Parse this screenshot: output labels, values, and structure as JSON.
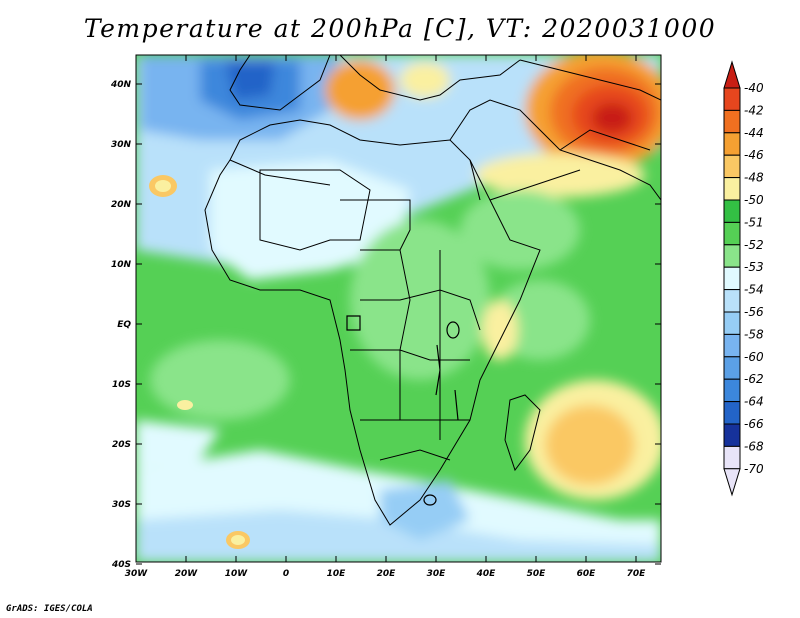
{
  "title": "Temperature at 200hPa [C], VT: 2020031000",
  "credit": "GrADS: IGES/COLA",
  "map": {
    "lon_range": [
      -30,
      75
    ],
    "lat_range": [
      -40,
      45
    ],
    "lat_ticks": [
      "40N",
      "30N",
      "20N",
      "10N",
      "EQ",
      "10S",
      "20S",
      "30S",
      "40S"
    ],
    "lon_ticks": [
      "30W",
      "20W",
      "10W",
      "0",
      "10E",
      "20E",
      "30E",
      "40E",
      "50E",
      "60E",
      "70E"
    ],
    "field_icon": "temperature-contour-field"
  },
  "colorbar": {
    "labels": [
      "-40",
      "-42",
      "-44",
      "-46",
      "-48",
      "-50",
      "-51",
      "-52",
      "-53",
      "-54",
      "-56",
      "-58",
      "-60",
      "-62",
      "-64",
      "-66",
      "-68",
      "-70"
    ],
    "colors": [
      "#c81e14",
      "#e6461e",
      "#f07020",
      "#f5a032",
      "#fac864",
      "#faf0a0",
      "#33c044",
      "#55d055",
      "#8ae48a",
      "#e1faff",
      "#b9e1fa",
      "#96cdf5",
      "#78b4f0",
      "#5ba0e6",
      "#3c87dc",
      "#2364c8",
      "#16329b",
      "#e8e4f8"
    ]
  }
}
